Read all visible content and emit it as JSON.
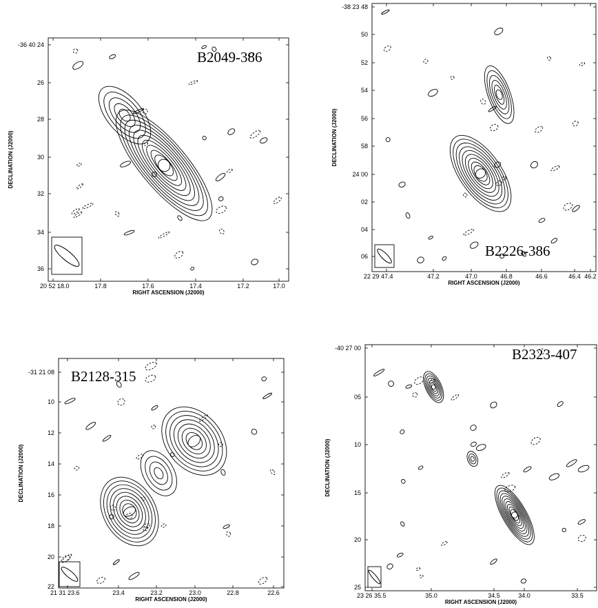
{
  "panels": [
    {
      "source_label": "B2049-386",
      "xlabel": "RIGHT ASCENSION (J2000)",
      "ylabel": "DECLINATION (J2000)",
      "x_ticks": [
        "20 52 18.0",
        "17.8",
        "17.6",
        "17.4",
        "17.2",
        "17.0"
      ],
      "y_ticks": [
        "-36 40 24",
        "26",
        "28",
        "30",
        "32",
        "34",
        "36"
      ]
    },
    {
      "source_label": "B2226-386",
      "xlabel": "RIGHT ASCENSION (J2000)",
      "ylabel": "DECLINATION (J2000)",
      "x_ticks": [
        "22 29 47.4",
        "47.2",
        "47.0",
        "46.8",
        "46.6",
        "46.4",
        "46.2"
      ],
      "y_ticks": [
        "-38 23 48",
        "50",
        "52",
        "54",
        "56",
        "58",
        "24 00",
        "02",
        "04",
        "06"
      ]
    },
    {
      "source_label": "B2128-315",
      "xlabel": "RIGHT ASCENSION (J2000)",
      "ylabel": "DECLINATION (J2000)",
      "x_ticks": [
        "21 31 23.6",
        "23.4",
        "23.2",
        "23.0",
        "22.8",
        "22.6"
      ],
      "y_ticks": [
        "-31 21 08",
        "10",
        "12",
        "14",
        "16",
        "18",
        "20",
        "22"
      ]
    },
    {
      "source_label": "B2323-407",
      "xlabel": "RIGHT ASCENSION (J2000)",
      "ylabel": "DECLINATION (J2000)",
      "x_ticks": [
        "23 26 35.5",
        "35.0",
        "34.5",
        "34.0",
        "33.5"
      ],
      "y_ticks": [
        "-40 27 00",
        "05",
        "10",
        "15",
        "20",
        "25"
      ]
    }
  ],
  "chart_data": [
    {
      "type": "contour",
      "title": "B2049-386",
      "xlabel": "RIGHT ASCENSION (J2000)",
      "ylabel": "DECLINATION (J2000)",
      "xlim_sec": [
        18.05,
        16.95
      ],
      "ylim_arcsec": [
        24,
        36.6
      ],
      "components": [
        {
          "ra_sec": 17.52,
          "dec_arcsec": 30.6,
          "nlevels": 11,
          "major_arcsec": 3.6,
          "minor_arcsec": 1.2,
          "pa_deg": -40
        },
        {
          "ra_sec": 17.7,
          "dec_arcsec": 28.0,
          "nlevels": 5,
          "major_arcsec": 1.8,
          "minor_arcsec": 0.9,
          "pa_deg": -40
        }
      ],
      "beam": {
        "pa_deg": -50
      }
    },
    {
      "type": "contour",
      "title": "B2226-386",
      "xlabel": "RIGHT ASCENSION (J2000)",
      "ylabel": "DECLINATION (J2000)",
      "xlim_sec": [
        47.5,
        46.18
      ],
      "ylim_arcsec": [
        48,
        67.4
      ],
      "components": [
        {
          "ra_sec": 46.86,
          "dec_arcsec": 60.3,
          "nlevels": 10,
          "major_arcsec": 3.2,
          "minor_arcsec": 1.5,
          "pa_deg": -35
        },
        {
          "ra_sec": 46.75,
          "dec_arcsec": 54.6,
          "nlevels": 6,
          "major_arcsec": 2.2,
          "minor_arcsec": 0.8,
          "pa_deg": -20
        }
      ],
      "beam": {
        "pa_deg": -45
      }
    },
    {
      "type": "contour",
      "title": "B2128-315",
      "xlabel": "RIGHT ASCENSION (J2000)",
      "ylabel": "DECLINATION (J2000)",
      "xlim_sec": [
        23.63,
        22.55
      ],
      "ylim_arcsec": [
        7,
        22
      ],
      "components": [
        {
          "ra_sec": 23.29,
          "dec_arcsec": 17.0,
          "nlevels": 9,
          "major_arcsec": 2.4,
          "minor_arcsec": 1.7,
          "pa_deg": -30
        },
        {
          "ra_sec": 22.98,
          "dec_arcsec": 12.4,
          "nlevels": 8,
          "major_arcsec": 2.5,
          "minor_arcsec": 1.8,
          "pa_deg": -40
        },
        {
          "ra_sec": 23.15,
          "dec_arcsec": 14.5,
          "nlevels": 4,
          "major_arcsec": 1.6,
          "minor_arcsec": 1.0,
          "pa_deg": -30
        }
      ],
      "beam": {
        "pa_deg": -50
      }
    },
    {
      "type": "contour",
      "title": "B2323-407",
      "xlabel": "RIGHT ASCENSION (J2000)",
      "ylabel": "DECLINATION (J2000)",
      "xlim_sec": [
        35.5,
        33.3
      ],
      "ylim_arcsec": [
        0,
        25
      ],
      "components": [
        {
          "ra_sec": 34.08,
          "dec_arcsec": 17.3,
          "nlevels": 11,
          "major_arcsec": 3.4,
          "minor_arcsec": 1.2,
          "pa_deg": -30
        },
        {
          "ra_sec": 34.85,
          "dec_arcsec": 4.3,
          "nlevels": 7,
          "major_arcsec": 1.7,
          "minor_arcsec": 0.8,
          "pa_deg": -25
        },
        {
          "ra_sec": 34.48,
          "dec_arcsec": 11.6,
          "nlevels": 3,
          "major_arcsec": 0.8,
          "minor_arcsec": 0.5,
          "pa_deg": -20
        }
      ],
      "beam": {
        "pa_deg": -40
      }
    }
  ]
}
